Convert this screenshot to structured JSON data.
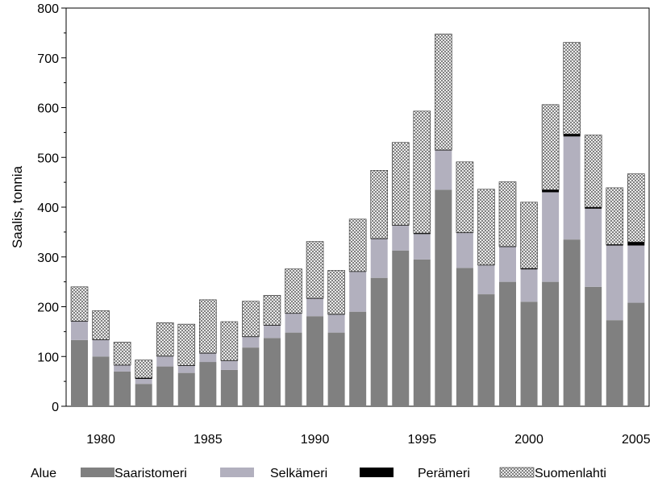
{
  "chart_data": {
    "type": "bar",
    "stacked": true,
    "ylabel": "Saalis, tonnia",
    "ylim": [
      0,
      800
    ],
    "yticks": [
      0,
      100,
      200,
      300,
      400,
      500,
      600,
      700,
      800
    ],
    "x": [
      1979,
      1980,
      1981,
      1982,
      1983,
      1984,
      1985,
      1986,
      1987,
      1988,
      1989,
      1990,
      1991,
      1992,
      1993,
      1994,
      1995,
      1996,
      1997,
      1998,
      1999,
      2000,
      2001,
      2002,
      2003,
      2004,
      2005,
      2006
    ],
    "xtick_labels": [
      "1980",
      "1985",
      "1990",
      "1995",
      "2000",
      "2005"
    ],
    "xtick_values": [
      1980,
      1985,
      1990,
      1995,
      2000,
      2005
    ],
    "legend_title": "Alue",
    "legend_position": "bottom",
    "series": [
      {
        "name": "Saaristomeri",
        "color": "#808080",
        "pattern": "solid",
        "values": [
          133,
          100,
          70,
          45,
          80,
          67,
          89,
          73,
          118,
          137,
          148,
          181,
          148,
          190,
          258,
          313,
          295,
          435,
          278,
          225,
          250,
          210,
          250,
          335,
          240,
          173,
          208,
          0
        ]
      },
      {
        "name": "Selkämeri",
        "color": "#b2b0be",
        "pattern": "solid",
        "values": [
          37,
          33,
          12,
          10,
          20,
          14,
          17,
          18,
          21,
          25,
          38,
          35,
          36,
          80,
          78,
          50,
          51,
          79,
          70,
          58,
          70,
          65,
          180,
          207,
          157,
          150,
          115,
          0
        ]
      },
      {
        "name": "Perämeri",
        "color": "#000000",
        "pattern": "solid",
        "values": [
          1,
          1,
          1,
          2,
          1,
          1,
          1,
          1,
          1,
          1,
          1,
          1,
          1,
          1,
          1,
          1,
          2,
          1,
          1,
          1,
          1,
          2,
          5,
          5,
          3,
          2,
          7,
          0
        ]
      },
      {
        "name": "Suomenlahti",
        "color": "#ffffff",
        "pattern": "crosshatch",
        "values": [
          69,
          58,
          46,
          36,
          67,
          83,
          107,
          78,
          71,
          60,
          89,
          114,
          88,
          105,
          137,
          166,
          245,
          233,
          142,
          152,
          130,
          133,
          171,
          184,
          145,
          114,
          137,
          0
        ]
      }
    ]
  }
}
